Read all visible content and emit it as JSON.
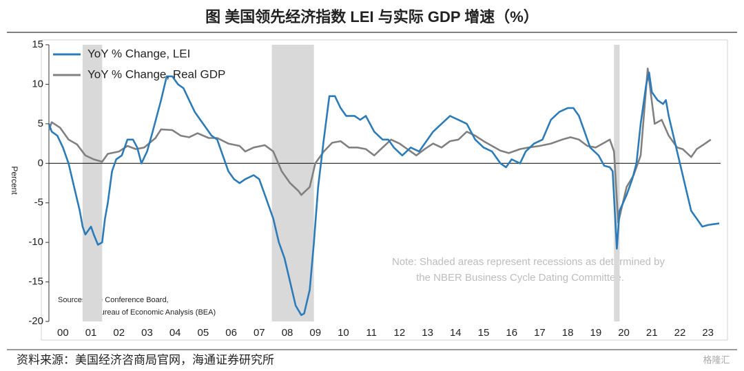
{
  "chart_data": {
    "type": "line",
    "title": "图  美国领先经济指数 LEI 与实际 GDP 增速（%）",
    "y_label": "Percent",
    "xlim": [
      2000,
      2023.95
    ],
    "ylim": [
      -20,
      15
    ],
    "yticks": [
      15,
      10,
      5,
      0,
      -5,
      -10,
      -15,
      -20
    ],
    "xticks": [
      {
        "value": 2000.5,
        "label": "00"
      },
      {
        "value": 2001.5,
        "label": "01"
      },
      {
        "value": 2002.5,
        "label": "02"
      },
      {
        "value": 2003.5,
        "label": "03"
      },
      {
        "value": 2004.5,
        "label": "04"
      },
      {
        "value": 2005.5,
        "label": "05"
      },
      {
        "value": 2006.5,
        "label": "06"
      },
      {
        "value": 2007.5,
        "label": "07"
      },
      {
        "value": 2008.5,
        "label": "08"
      },
      {
        "value": 2009.5,
        "label": "09"
      },
      {
        "value": 2010.5,
        "label": "10"
      },
      {
        "value": 2011.5,
        "label": "11"
      },
      {
        "value": 2012.5,
        "label": "12"
      },
      {
        "value": 2013.5,
        "label": "13"
      },
      {
        "value": 2014.5,
        "label": "14"
      },
      {
        "value": 2015.5,
        "label": "15"
      },
      {
        "value": 2016.5,
        "label": "16"
      },
      {
        "value": 2017.5,
        "label": "17"
      },
      {
        "value": 2018.5,
        "label": "18"
      },
      {
        "value": 2019.5,
        "label": "19"
      },
      {
        "value": 2020.5,
        "label": "20"
      },
      {
        "value": 2021.5,
        "label": "21"
      },
      {
        "value": 2022.5,
        "label": "22"
      },
      {
        "value": 2023.5,
        "label": "23"
      }
    ],
    "recessions": [
      [
        2001.2,
        2001.9
      ],
      [
        2007.95,
        2009.45
      ],
      [
        2020.15,
        2020.35
      ]
    ],
    "recession_color": "#d9d9d9",
    "legend": "top-left",
    "series": [
      {
        "name": "YoY % Change, LEI",
        "color": "#2b7bb9",
        "x": [
          2000.0,
          2000.1,
          2000.3,
          2000.5,
          2000.7,
          2000.9,
          2001.1,
          2001.2,
          2001.3,
          2001.5,
          2001.6,
          2001.75,
          2001.9,
          2002.0,
          2002.1,
          2002.25,
          2002.4,
          2002.6,
          2002.8,
          2003.0,
          2003.15,
          2003.3,
          2003.5,
          2003.7,
          2004.0,
          2004.2,
          2004.4,
          2004.6,
          2004.8,
          2005.0,
          2005.2,
          2005.5,
          2005.8,
          2006.0,
          2006.2,
          2006.4,
          2006.6,
          2006.8,
          2007.0,
          2007.3,
          2007.5,
          2007.7,
          2008.0,
          2008.2,
          2008.4,
          2008.6,
          2008.8,
          2009.0,
          2009.1,
          2009.3,
          2009.45,
          2009.6,
          2009.8,
          2010.0,
          2010.2,
          2010.4,
          2010.6,
          2010.9,
          2011.1,
          2011.3,
          2011.6,
          2011.9,
          2012.1,
          2012.3,
          2012.6,
          2012.9,
          2013.2,
          2013.4,
          2013.7,
          2014.0,
          2014.3,
          2014.6,
          2014.9,
          2015.2,
          2015.5,
          2015.8,
          2016.1,
          2016.3,
          2016.5,
          2016.8,
          2017.0,
          2017.3,
          2017.6,
          2017.9,
          2018.2,
          2018.5,
          2018.7,
          2018.9,
          2019.1,
          2019.3,
          2019.6,
          2019.8,
          2020.0,
          2020.1,
          2020.25,
          2020.35,
          2020.6,
          2020.8,
          2020.95,
          2021.1,
          2021.3,
          2021.4,
          2021.5,
          2021.7,
          2021.9,
          2022.0,
          2022.1,
          2022.3,
          2022.5,
          2022.7,
          2022.9,
          2023.1,
          2023.3,
          2023.5,
          2023.7,
          2023.9
        ],
        "values": [
          5,
          4,
          3.5,
          2,
          0,
          -3,
          -6,
          -8,
          -9,
          -8,
          -9,
          -10.3,
          -10,
          -7,
          -5,
          -1,
          0.5,
          1,
          3,
          3,
          2,
          0,
          1.5,
          4,
          8,
          11,
          11,
          10,
          9.5,
          8,
          6.5,
          5,
          3.5,
          3,
          1,
          -1,
          -2,
          -2.5,
          -2,
          -1.5,
          -2,
          -4,
          -7,
          -10,
          -12,
          -15,
          -18,
          -19.2,
          -19,
          -16,
          -10,
          -3,
          3,
          8.5,
          8.5,
          7,
          6,
          6,
          5.5,
          6,
          4,
          3,
          3,
          2,
          1,
          2,
          1.5,
          2.5,
          4,
          5,
          6,
          5.5,
          5,
          3,
          2,
          1.5,
          0,
          -0.5,
          0.5,
          0,
          1.5,
          2.5,
          3,
          5.5,
          6.5,
          7,
          7,
          6,
          4,
          2,
          1,
          -0.3,
          -0.5,
          -1,
          -10.8,
          -6,
          -4,
          -2,
          0,
          5,
          10,
          11.5,
          9,
          8,
          7.5,
          8,
          6,
          3,
          0,
          -3,
          -6,
          -7,
          -8,
          -7.8,
          -7.7,
          -7.6
        ]
      },
      {
        "name": "YoY % Change, Real GDP",
        "color": "#808080",
        "x": [
          2000.0,
          2000.1,
          2000.4,
          2000.7,
          2001.0,
          2001.3,
          2001.6,
          2001.9,
          2002.1,
          2002.5,
          2002.8,
          2003.1,
          2003.4,
          2003.8,
          2004.0,
          2004.4,
          2004.7,
          2005.0,
          2005.3,
          2005.7,
          2006.0,
          2006.4,
          2006.8,
          2007.0,
          2007.3,
          2007.7,
          2008.0,
          2008.3,
          2008.6,
          2008.9,
          2009.0,
          2009.3,
          2009.5,
          2009.8,
          2010.1,
          2010.4,
          2010.7,
          2011.0,
          2011.3,
          2011.6,
          2011.9,
          2012.2,
          2012.5,
          2012.9,
          2013.1,
          2013.4,
          2013.7,
          2014.0,
          2014.3,
          2014.6,
          2014.9,
          2015.2,
          2015.5,
          2015.8,
          2016.1,
          2016.4,
          2016.8,
          2017.1,
          2017.5,
          2017.9,
          2018.3,
          2018.6,
          2018.9,
          2019.2,
          2019.5,
          2019.8,
          2020.0,
          2020.15,
          2020.3,
          2020.6,
          2020.85,
          2021.1,
          2021.35,
          2021.6,
          2021.85,
          2022.1,
          2022.4,
          2022.6,
          2022.9,
          2023.1,
          2023.4,
          2023.6
        ],
        "values": [
          4.2,
          5.2,
          4.5,
          3,
          2.4,
          1,
          0.5,
          0.2,
          1.2,
          1.5,
          2.2,
          1.8,
          2,
          3.2,
          4.3,
          4.2,
          3.5,
          3.3,
          3.8,
          3.2,
          3.2,
          2.5,
          2.2,
          1.5,
          2,
          2.3,
          1.5,
          -1,
          -2.5,
          -3.5,
          -4,
          -3,
          0,
          1.5,
          2.6,
          2.8,
          2,
          2,
          1.8,
          1,
          2,
          3,
          2.5,
          1.5,
          1,
          1.8,
          2.5,
          2,
          2.8,
          3,
          4,
          3.5,
          2.8,
          2.2,
          1.6,
          1.3,
          1.8,
          2,
          2.2,
          2.5,
          3,
          3.3,
          3,
          2.2,
          2,
          2.6,
          3,
          1.5,
          -7.5,
          -3,
          -1.5,
          1,
          12,
          5,
          5.5,
          3.5,
          2,
          1.8,
          0.8,
          1.8,
          2.5,
          3
        ]
      }
    ],
    "note": [
      "Note: Shaded areas represent recessions as determined by",
      "the NBER Business Cycle Dating Committee."
    ],
    "sources": [
      "Sources: The Conference Board,",
      "*Bureau of Economic Analysis (BEA)"
    ],
    "footer": "资料来源：美国经济咨商局官网，海通证券研究所",
    "watermark": "格隆汇"
  }
}
